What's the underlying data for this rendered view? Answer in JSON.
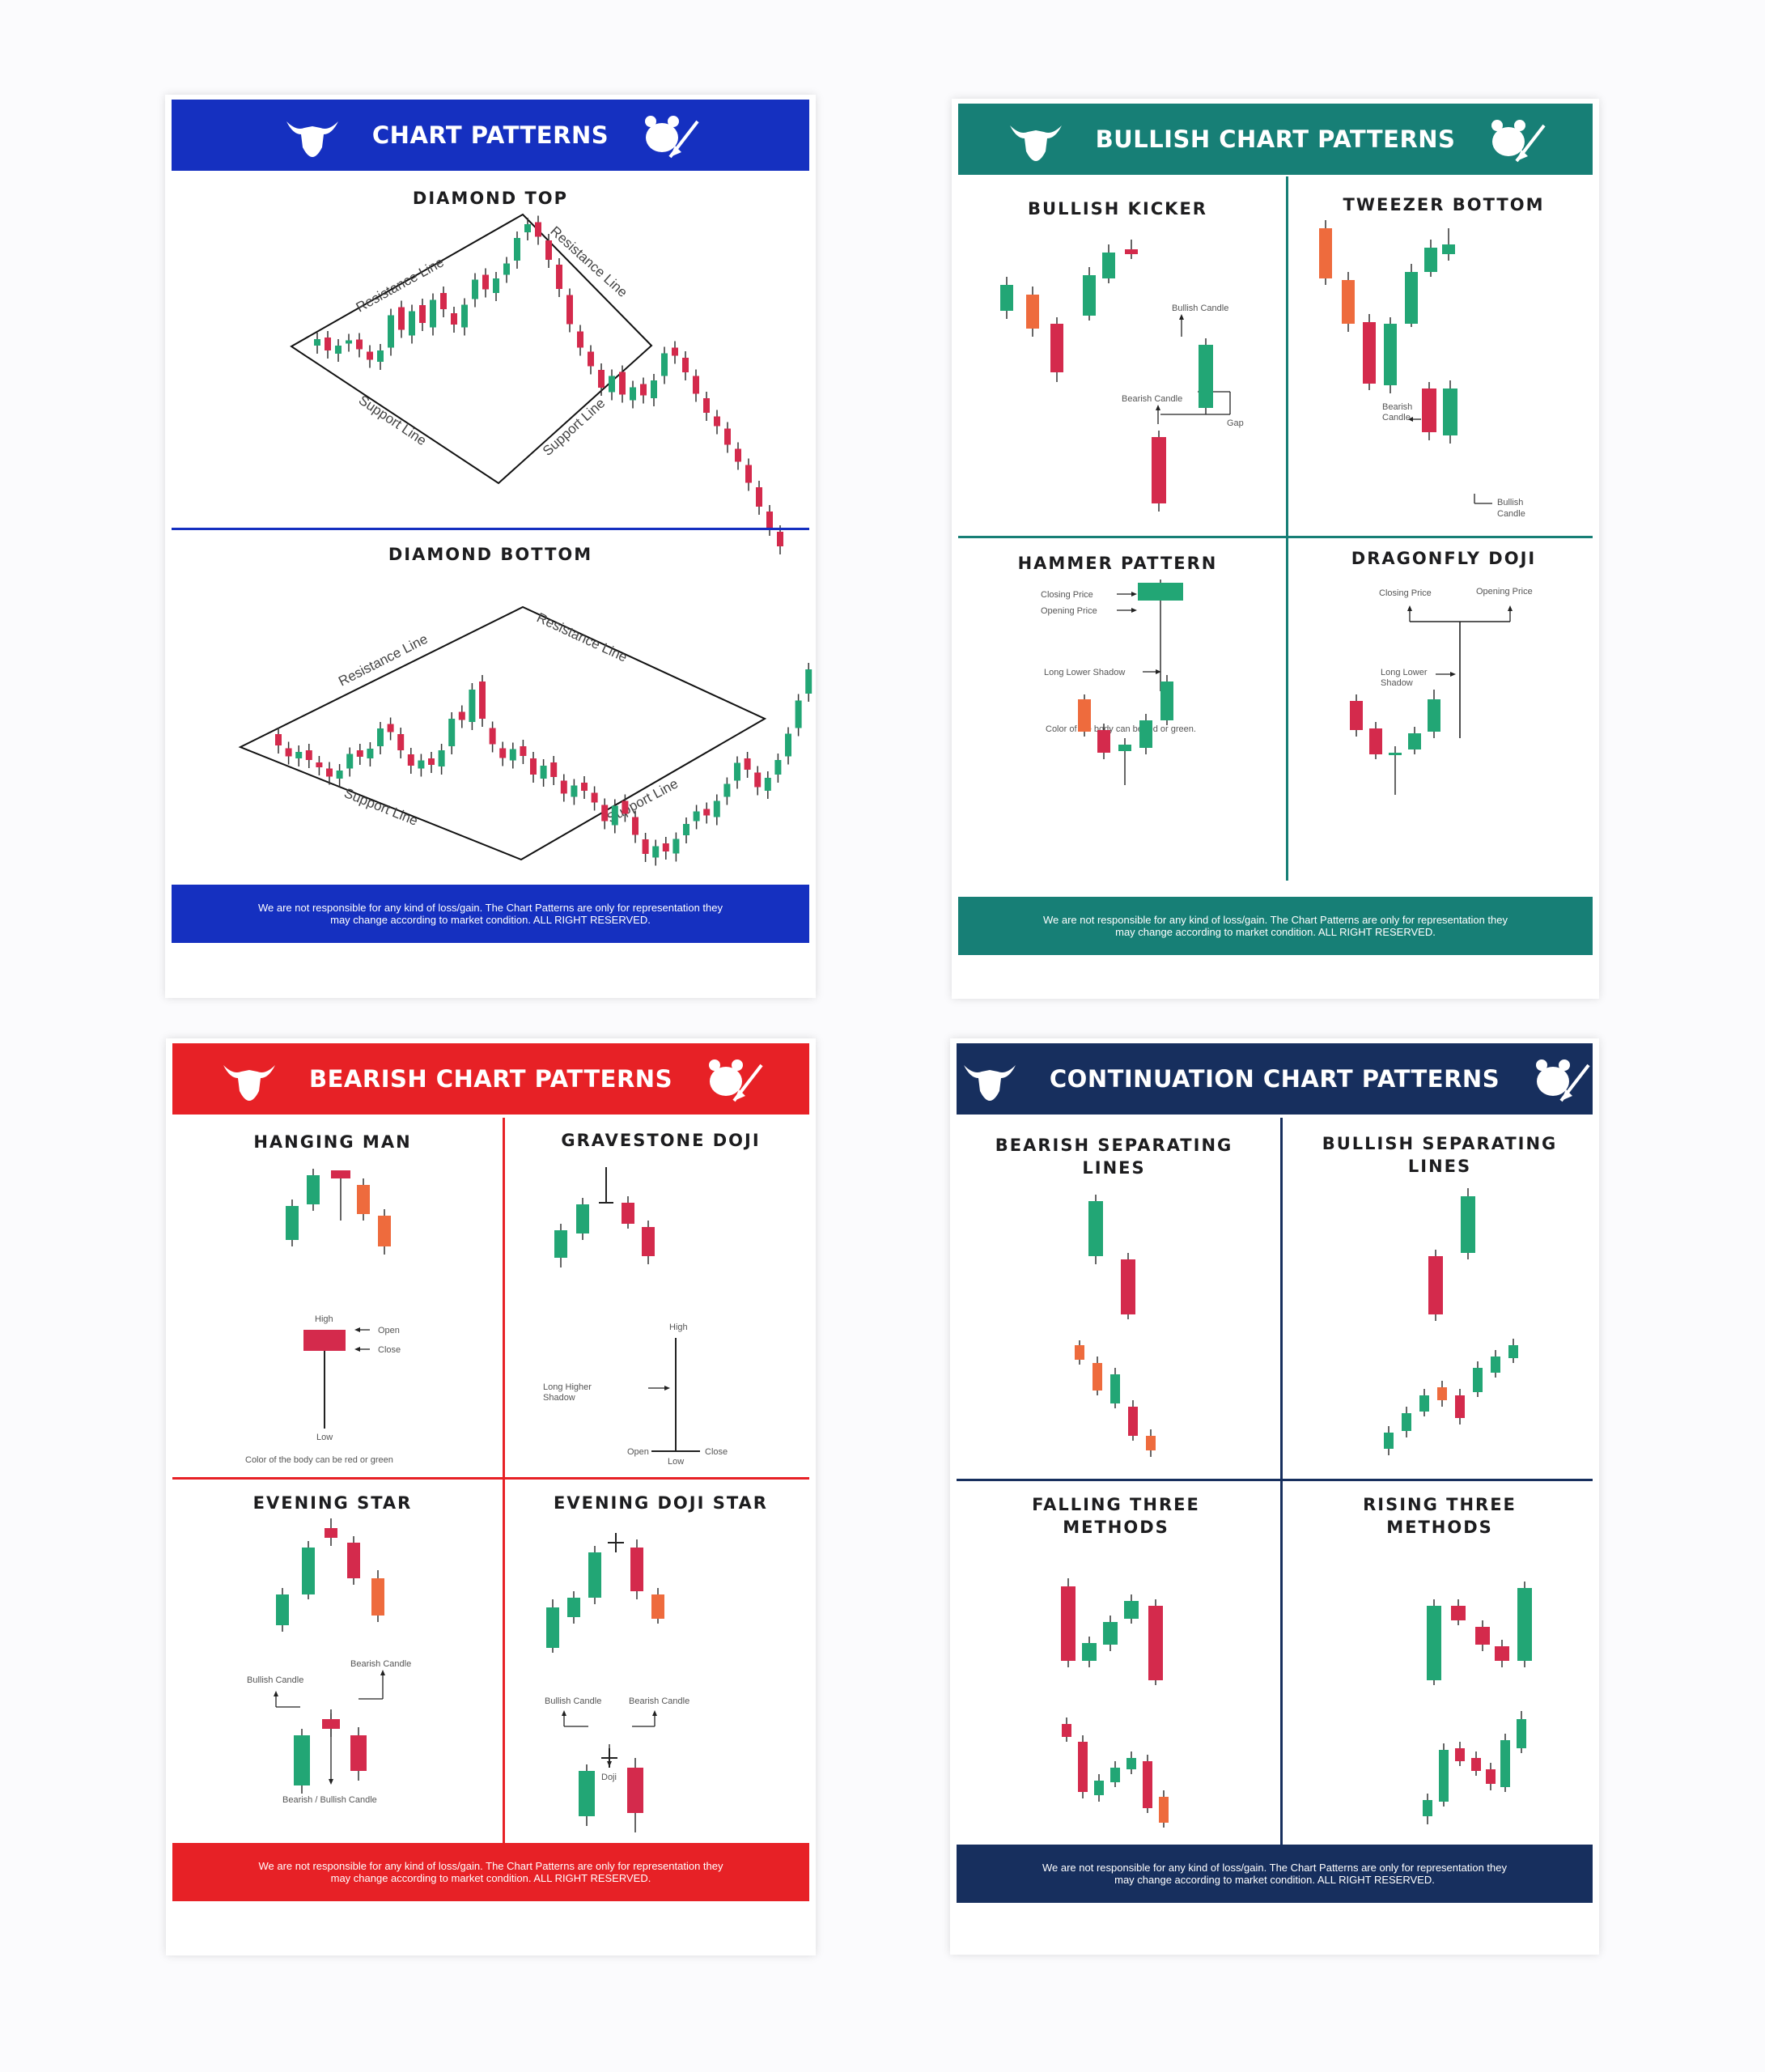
{
  "colors": {
    "bull": "#22a675",
    "bear": "#d42a4c",
    "orange": "#ee6b3d",
    "blue": "#1530c0",
    "teal": "#177f76",
    "red": "#e72126",
    "navy": "#172f5e"
  },
  "posters": [
    {
      "title": "CHART PATTERNS",
      "footer": "We are not responsible for any kind of loss/gain. The Chart Patterns are only for representation they may change according to market condition. ALL RIGHT RESERVED."
    },
    {
      "title": "BULLISH CHART PATTERNS",
      "footer": "We are not responsible for any kind of loss/gain. The Chart Patterns are only for representation they may change according to market condition. ALL RIGHT RESERVED."
    },
    {
      "title": "BEARISH CHART PATTERNS",
      "footer": "We are not responsible for any kind of loss/gain. The Chart Patterns are only for representation they may change according to market condition. ALL RIGHT RESERVED."
    },
    {
      "title": "CONTINUATION CHART PATTERNS",
      "footer": "We are not responsible for any kind of loss/gain. The Chart Patterns are only for representation they may change according to market condition. ALL RIGHT RESERVED."
    }
  ],
  "patterns": {
    "diamond_top": {
      "title": "DIAMOND TOP",
      "labels": {
        "res1": "Resistance Line",
        "res2": "Resistance Line",
        "sup1": "Support Line",
        "sup2": "Support Line"
      }
    },
    "diamond_bottom": {
      "title": "DIAMOND BOTTOM",
      "labels": {
        "res1": "Resistance Line",
        "res2": "Resistance Line",
        "sup1": "Support Line",
        "sup2": "Support Line"
      }
    },
    "bullish_kicker": {
      "title": "BULLISH KICKER",
      "labels": {
        "bull": "Bullish Candle",
        "bear": "Bearish Candle",
        "gap": "Gap"
      }
    },
    "tweezer_bottom": {
      "title": "TWEEZER BOTTOM",
      "labels": {
        "bear1": "Bearish",
        "bear2": "Candle",
        "bull1": "Bullish",
        "bull2": "Candle"
      }
    },
    "hammer": {
      "title": "HAMMER PATTERN",
      "labels": {
        "close": "Closing Price",
        "open": "Opening Price",
        "shadow": "Long Lower Shadow",
        "note": "Color of the body can be red or green."
      }
    },
    "dragonfly": {
      "title": "DRAGONFLY DOJI",
      "labels": {
        "close": "Closing Price",
        "open": "Opening Price",
        "shadow1": "Long Lower",
        "shadow2": "Shadow"
      }
    },
    "hanging_man": {
      "title": "HANGING MAN",
      "labels": {
        "high": "High",
        "open": "Open",
        "close": "Close",
        "low": "Low",
        "note": "Color of the body can be red or green"
      }
    },
    "gravestone": {
      "title": "GRAVESTONE DOJI",
      "labels": {
        "high": "High",
        "shadow1": "Long Higher",
        "shadow2": "Shadow",
        "open": "Open",
        "close": "Close",
        "low": "Low"
      }
    },
    "evening_star": {
      "title": "EVENING STAR",
      "labels": {
        "bull": "Bullish Candle",
        "bear": "Bearish Candle",
        "mid": "Bearish / Bullish Candle"
      }
    },
    "evening_doji": {
      "title": "EVENING DOJI STAR",
      "labels": {
        "bull": "Bullish Candle",
        "bear": "Bearish Candle",
        "doji": "Doji"
      }
    },
    "bearish_sep": {
      "title": "BEARISH SEPARATING LINES"
    },
    "bullish_sep": {
      "title": "BULLISH SEPARATING LINES"
    },
    "falling_three": {
      "title": "FALLING THREE METHODS"
    },
    "rising_three": {
      "title": "RISING THREE METHODS"
    }
  }
}
